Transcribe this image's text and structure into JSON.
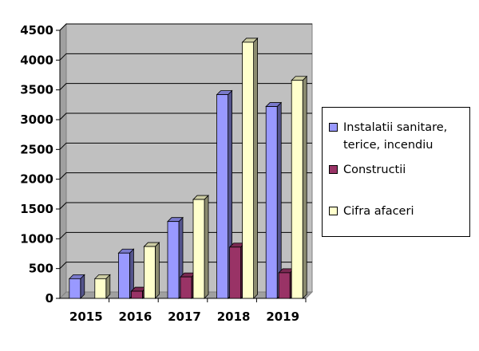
{
  "chart_data": {
    "type": "bar",
    "title": "",
    "xlabel": "",
    "ylabel": "",
    "categories": [
      "2015",
      "2016",
      "2017",
      "2018",
      "2019"
    ],
    "ylim": [
      0,
      4500
    ],
    "yticks": [
      "0",
      "500",
      "1000",
      "1500",
      "2000",
      "2500",
      "3000",
      "3500",
      "4000",
      "4500"
    ],
    "grid": true,
    "legend_position": "right",
    "style": "3d-clustered",
    "series": [
      {
        "name": "Instalatii sanitare, terice, incendiu",
        "color": "#9999ff",
        "values": [
          330,
          760,
          1290,
          3420,
          3220
        ]
      },
      {
        "name": "Constructii",
        "color": "#993366",
        "values": [
          0,
          120,
          360,
          860,
          430
        ]
      },
      {
        "name": "Cifra afaceri",
        "color": "#ffffcc",
        "values": [
          330,
          870,
          1660,
          4300,
          3660
        ]
      }
    ],
    "colors": {
      "plot_area": "#c0c0c0",
      "gridline": "#000000"
    }
  },
  "legend": {
    "items": [
      {
        "label": "Instalatii sanitare,\nterice, incendiu"
      },
      {
        "label": "Constructii"
      },
      {
        "label": "Cifra afaceri"
      }
    ]
  }
}
